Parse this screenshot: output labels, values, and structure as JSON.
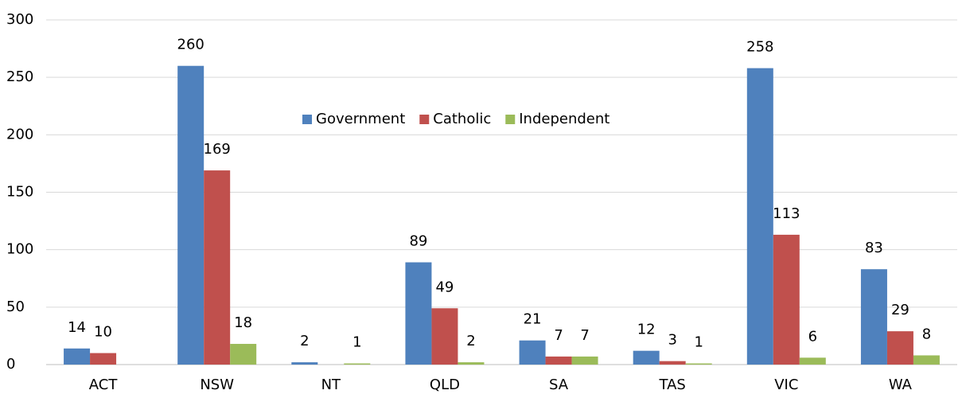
{
  "chart_data": {
    "type": "bar",
    "categories": [
      "ACT",
      "NSW",
      "NT",
      "QLD",
      "SA",
      "TAS",
      "VIC",
      "WA"
    ],
    "series": [
      {
        "name": "Government",
        "color": "#4f81bd",
        "values": [
          14,
          260,
          2,
          89,
          21,
          12,
          258,
          83
        ]
      },
      {
        "name": "Catholic",
        "color": "#c0504d",
        "values": [
          10,
          169,
          null,
          49,
          7,
          3,
          113,
          29
        ]
      },
      {
        "name": "Independent",
        "color": "#9bbb59",
        "values": [
          null,
          18,
          1,
          2,
          7,
          1,
          6,
          8
        ]
      }
    ],
    "ylim": [
      0,
      300
    ],
    "yticks": [
      0,
      50,
      100,
      150,
      200,
      250,
      300
    ],
    "grid": true,
    "legend": "top-center"
  }
}
